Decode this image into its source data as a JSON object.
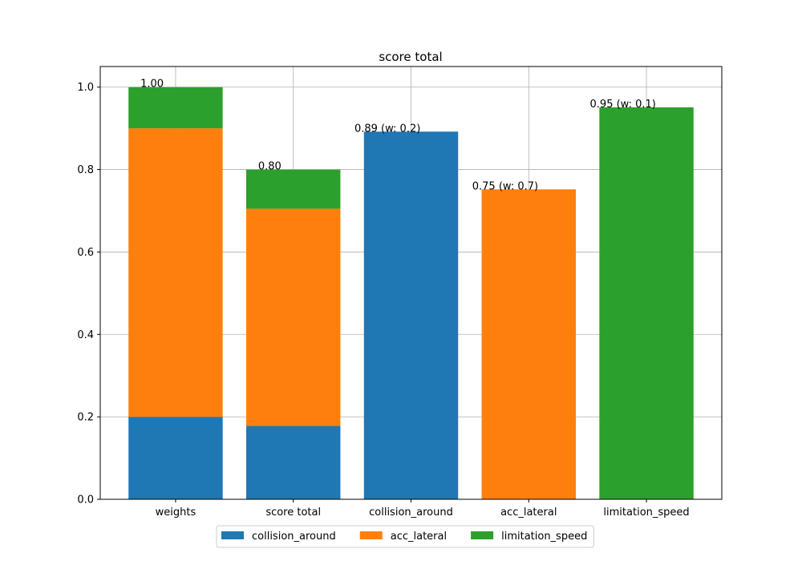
{
  "chart_data": {
    "type": "bar",
    "stacked": true,
    "title": "score total",
    "categories": [
      "weights",
      "score total",
      "collision_around",
      "acc_lateral",
      "limitation_speed"
    ],
    "series": [
      {
        "name": "collision_around",
        "color": "#1f77b4",
        "values": [
          0.2,
          0.178,
          0.892,
          null,
          null
        ]
      },
      {
        "name": "acc_lateral",
        "color": "#ff7f0e",
        "values": [
          0.7,
          0.527,
          null,
          0.752,
          null
        ]
      },
      {
        "name": "limitation_speed",
        "color": "#2ca02c",
        "values": [
          0.1,
          0.095,
          null,
          null,
          0.951
        ]
      }
    ],
    "annotations": [
      "1.00",
      "0.80",
      "0.89 (w: 0.2)",
      "0.75 (w: 0.7)",
      "0.95 (w: 0.1)"
    ],
    "ylim": [
      0,
      1.05
    ],
    "yticks": [
      {
        "value": 0,
        "label": "0.0"
      },
      0.2,
      0.4,
      0.6,
      0.8,
      {
        "value": 1,
        "label": "1.0"
      }
    ],
    "grid": true,
    "legend": "bottom"
  }
}
